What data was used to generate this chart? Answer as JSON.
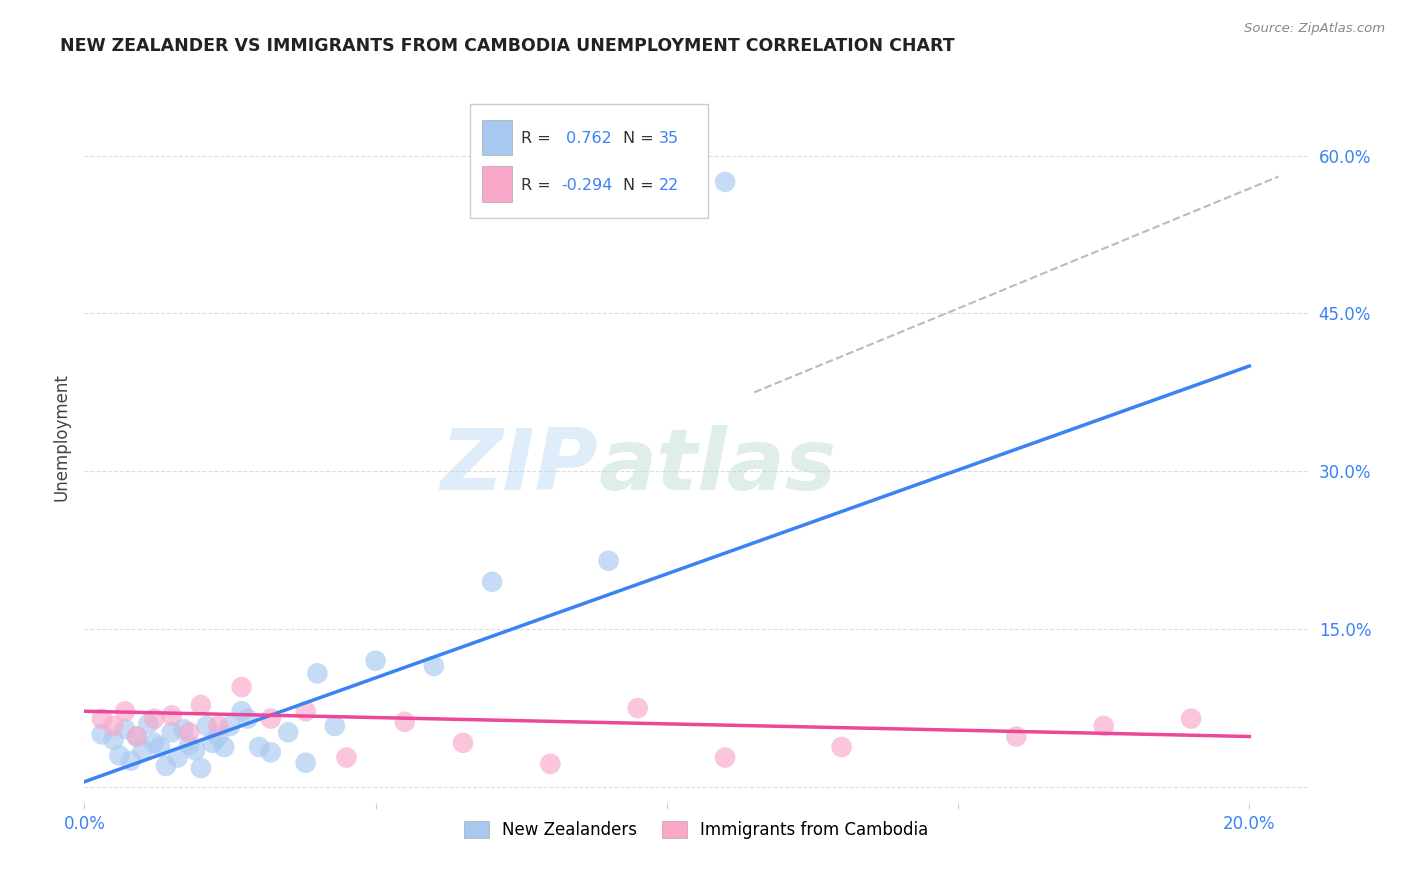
{
  "title": "NEW ZEALANDER VS IMMIGRANTS FROM CAMBODIA UNEMPLOYMENT CORRELATION CHART",
  "source": "Source: ZipAtlas.com",
  "ylabel": "Unemployment",
  "xlim": [
    0.0,
    0.21
  ],
  "ylim": [
    -0.015,
    0.68
  ],
  "xticks": [
    0.0,
    0.05,
    0.1,
    0.15,
    0.2
  ],
  "xtick_labels": [
    "0.0%",
    "",
    "",
    "",
    "20.0%"
  ],
  "ytick_labels_right": [
    "60.0%",
    "45.0%",
    "30.0%",
    "15.0%",
    ""
  ],
  "ytick_vals_right": [
    0.6,
    0.45,
    0.3,
    0.15,
    0.0
  ],
  "blue_color": "#A8C8F0",
  "blue_line_color": "#3B82F6",
  "pink_color": "#F9A8C9",
  "pink_line_color": "#EC4899",
  "dashed_line_color": "#BBBBBB",
  "watermark_zip": "ZIP",
  "watermark_atlas": "atlas",
  "legend_r_blue": "0.762",
  "legend_n_blue": "35",
  "legend_r_pink": "-0.294",
  "legend_n_pink": "22",
  "legend_label_blue": "New Zealanders",
  "legend_label_pink": "Immigrants from Cambodia",
  "blue_scatter_x": [
    0.003,
    0.005,
    0.006,
    0.007,
    0.008,
    0.009,
    0.01,
    0.011,
    0.012,
    0.013,
    0.014,
    0.015,
    0.016,
    0.017,
    0.018,
    0.019,
    0.02,
    0.021,
    0.022,
    0.023,
    0.024,
    0.025,
    0.027,
    0.028,
    0.03,
    0.032,
    0.035,
    0.038,
    0.04,
    0.043,
    0.05,
    0.06,
    0.07,
    0.09,
    0.11
  ],
  "blue_scatter_y": [
    0.05,
    0.045,
    0.03,
    0.055,
    0.025,
    0.048,
    0.035,
    0.06,
    0.042,
    0.038,
    0.02,
    0.052,
    0.028,
    0.055,
    0.04,
    0.035,
    0.018,
    0.058,
    0.042,
    0.048,
    0.038,
    0.058,
    0.072,
    0.065,
    0.038,
    0.033,
    0.052,
    0.023,
    0.108,
    0.058,
    0.12,
    0.115,
    0.195,
    0.215,
    0.575
  ],
  "pink_scatter_x": [
    0.003,
    0.005,
    0.007,
    0.009,
    0.012,
    0.015,
    0.018,
    0.02,
    0.023,
    0.027,
    0.032,
    0.038,
    0.045,
    0.055,
    0.065,
    0.08,
    0.095,
    0.11,
    0.13,
    0.16,
    0.175,
    0.19
  ],
  "pink_scatter_y": [
    0.065,
    0.058,
    0.072,
    0.048,
    0.065,
    0.068,
    0.052,
    0.078,
    0.058,
    0.095,
    0.065,
    0.072,
    0.028,
    0.062,
    0.042,
    0.022,
    0.075,
    0.028,
    0.038,
    0.048,
    0.058,
    0.065
  ],
  "blue_line_x0": 0.0,
  "blue_line_y0": 0.005,
  "blue_line_x1": 0.2,
  "blue_line_y1": 0.4,
  "pink_line_x0": 0.0,
  "pink_line_y0": 0.072,
  "pink_line_x1": 0.2,
  "pink_line_y1": 0.048,
  "dash_line_x0": 0.115,
  "dash_line_y0": 0.375,
  "dash_line_x1": 0.205,
  "dash_line_y1": 0.58,
  "grid_color": "#DDDDDD",
  "background_color": "#FFFFFF",
  "title_color": "#222222",
  "source_color": "#888888",
  "number_color": "#3B82F6"
}
